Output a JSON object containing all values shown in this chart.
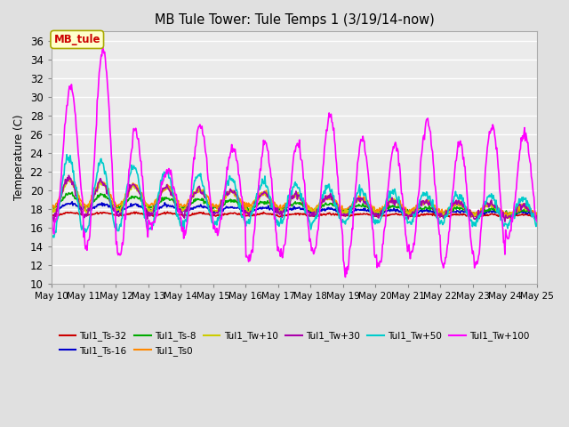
{
  "title": "MB Tule Tower: Tule Temps 1 (3/19/14-now)",
  "ylabel": "Temperature (C)",
  "ylim": [
    10,
    37
  ],
  "yticks": [
    10,
    12,
    14,
    16,
    18,
    20,
    22,
    24,
    26,
    28,
    30,
    32,
    34,
    36
  ],
  "bg_color": "#e0e0e0",
  "plot_bg_color": "#ebebeb",
  "annotation_label": "MB_tule",
  "annotation_color": "#cc0000",
  "annotation_bg": "#ffffcc",
  "annotation_border": "#aaaa00",
  "series": [
    {
      "label": "Tul1_Ts-32",
      "color": "#cc0000",
      "lw": 1.2
    },
    {
      "label": "Tul1_Ts-16",
      "color": "#0000cc",
      "lw": 1.2
    },
    {
      "label": "Tul1_Ts-8",
      "color": "#00aa00",
      "lw": 1.2
    },
    {
      "label": "Tul1_Ts0",
      "color": "#ff8800",
      "lw": 1.2
    },
    {
      "label": "Tul1_Tw+10",
      "color": "#cccc00",
      "lw": 1.2
    },
    {
      "label": "Tul1_Tw+30",
      "color": "#aa00aa",
      "lw": 1.2
    },
    {
      "label": "Tul1_Tw+50",
      "color": "#00cccc",
      "lw": 1.2
    },
    {
      "label": "Tul1_Tw+100",
      "color": "#ff00ff",
      "lw": 1.2
    }
  ],
  "xtick_days": [
    10,
    11,
    12,
    13,
    14,
    15,
    16,
    17,
    18,
    19,
    20,
    21,
    22,
    23,
    24,
    25
  ],
  "x_start": 10,
  "x_end": 25,
  "n_per_day": 48
}
